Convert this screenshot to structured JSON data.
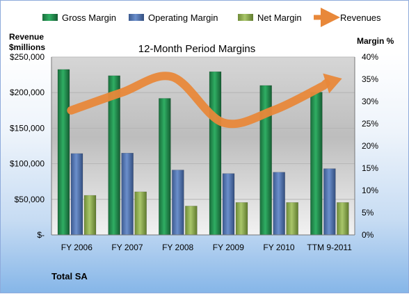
{
  "chart_data": {
    "type": "bar",
    "title": "12-Month Period Margins",
    "y_left_label": [
      "Revenue",
      "$millions"
    ],
    "y_right_label": "Margin %",
    "categories": [
      "FY 2006",
      "FY 2007",
      "FY 2008",
      "FY 2009",
      "FY 2010",
      "TTM 9-2011"
    ],
    "y_left_ticks": [
      "$-",
      "$50,000",
      "$100,000",
      "$150,000",
      "$200,000",
      "$250,000"
    ],
    "y_right_ticks": [
      "0%",
      "5%",
      "10%",
      "15%",
      "20%",
      "25%",
      "30%",
      "35%",
      "40%"
    ],
    "ylim_left": [
      0,
      250000
    ],
    "ylim_right": [
      0,
      40
    ],
    "series": [
      {
        "name": "Gross Margin",
        "axis": "right",
        "color": "#1f8a4c",
        "values": [
          37.2,
          35.8,
          30.7,
          36.7,
          33.6,
          32.1
        ]
      },
      {
        "name": "Operating Margin",
        "axis": "right",
        "color": "#4a6eaa",
        "values": [
          18.3,
          18.4,
          14.6,
          13.8,
          14.1,
          14.9
        ]
      },
      {
        "name": "Net Margin",
        "axis": "right",
        "color": "#8aaa4a",
        "values": [
          8.9,
          9.7,
          6.5,
          7.3,
          7.3,
          7.3
        ]
      },
      {
        "name": "Revenues",
        "axis": "left",
        "type": "line",
        "color": "#e8883a",
        "values": [
          175000,
          200000,
          222000,
          158000,
          175000,
          210000
        ]
      }
    ],
    "footer": "Total SA"
  }
}
